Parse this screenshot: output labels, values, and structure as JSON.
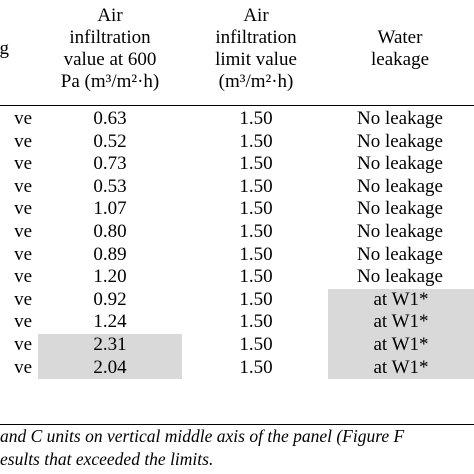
{
  "table": {
    "headers": {
      "col1": [
        "ng"
      ],
      "col2": [
        "Air",
        "infiltration",
        "value at 600",
        "Pa (m³/m²·h)"
      ],
      "col3": [
        "Air",
        "infiltration",
        "limit value",
        "(m³/m²·h)"
      ],
      "col4": [
        "Water",
        "leakage"
      ]
    },
    "rows": [
      {
        "c1": "ve",
        "value": "0.63",
        "limit": "1.50",
        "leak": "No leakage",
        "value_exceeds": false,
        "leak_exceeds": false
      },
      {
        "c1": "ve",
        "value": "0.52",
        "limit": "1.50",
        "leak": "No leakage",
        "value_exceeds": false,
        "leak_exceeds": false
      },
      {
        "c1": "ve",
        "value": "0.73",
        "limit": "1.50",
        "leak": "No leakage",
        "value_exceeds": false,
        "leak_exceeds": false
      },
      {
        "c1": "ve",
        "value": "0.53",
        "limit": "1.50",
        "leak": "No leakage",
        "value_exceeds": false,
        "leak_exceeds": false
      },
      {
        "c1": "ve",
        "value": "1.07",
        "limit": "1.50",
        "leak": "No leakage",
        "value_exceeds": false,
        "leak_exceeds": false
      },
      {
        "c1": "ve",
        "value": "0.80",
        "limit": "1.50",
        "leak": "No leakage",
        "value_exceeds": false,
        "leak_exceeds": false
      },
      {
        "c1": "ve",
        "value": "0.89",
        "limit": "1.50",
        "leak": "No leakage",
        "value_exceeds": false,
        "leak_exceeds": false
      },
      {
        "c1": "ve",
        "value": "1.20",
        "limit": "1.50",
        "leak": "No leakage",
        "value_exceeds": false,
        "leak_exceeds": false
      },
      {
        "c1": "ve",
        "value": "0.92",
        "limit": "1.50",
        "leak": "at W1*",
        "value_exceeds": false,
        "leak_exceeds": true
      },
      {
        "c1": "ve",
        "value": "1.24",
        "limit": "1.50",
        "leak": "at W1*",
        "value_exceeds": false,
        "leak_exceeds": true
      },
      {
        "c1": "ve",
        "value": "2.31",
        "limit": "1.50",
        "leak": "at W1*",
        "value_exceeds": true,
        "leak_exceeds": true
      },
      {
        "c1": "ve",
        "value": "2.04",
        "limit": "1.50",
        "leak": "at W1*",
        "value_exceeds": true,
        "leak_exceeds": true
      }
    ],
    "highlight_color": "#d9d9d9"
  },
  "footnotes": {
    "line1": "and C units on vertical middle axis of the panel (Figure F",
    "line2": "esults that exceeded the limits."
  }
}
